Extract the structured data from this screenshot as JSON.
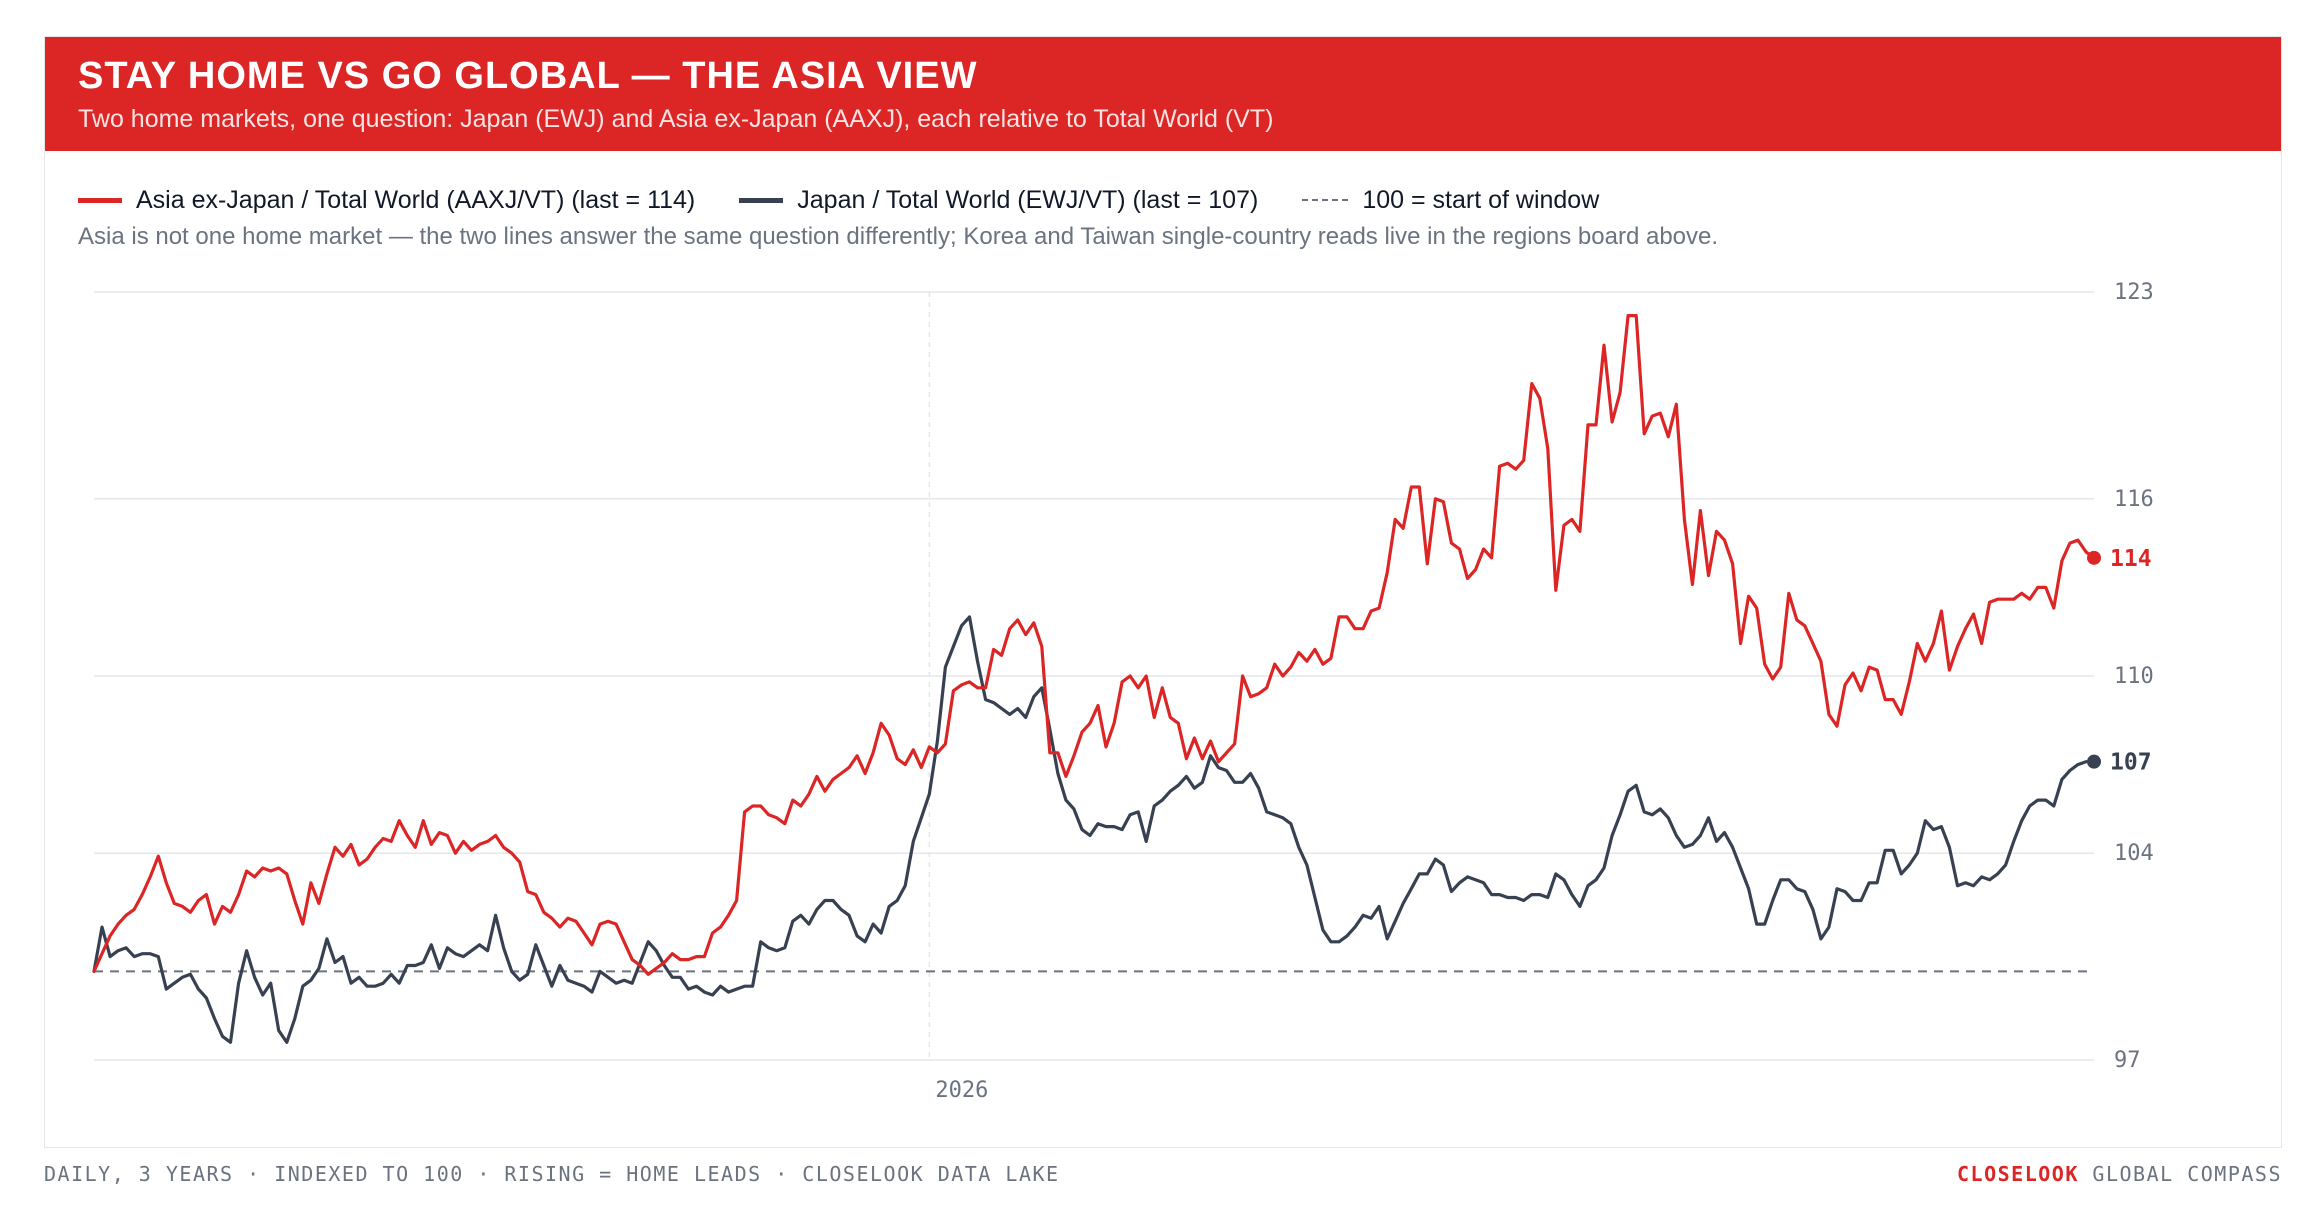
{
  "header": {
    "title": "STAY HOME VS GO GLOBAL — THE ASIA VIEW",
    "subtitle": "Two home markets, one question: Japan (EWJ) and Asia ex-Japan (AAXJ), each relative to Total World (VT)"
  },
  "legend": {
    "asia_label": "Asia ex-Japan / Total World (AAXJ/VT) (last = 114)",
    "japan_label": "Japan / Total World (EWJ/VT) (last = 107)",
    "baseline_label": "100 = start of window"
  },
  "note": "Asia is not one home market — the two lines answer the same question differently; Korea and Taiwan single-country reads live in the regions board above.",
  "footer": {
    "left": "DAILY, 3 YEARS · INDEXED TO 100 · RISING = HOME LEADS · CLOSELOOK DATA LAKE",
    "brand": "CLOSELOOK",
    "right": "GLOBAL COMPASS"
  },
  "colors": {
    "asia": "#dc2626",
    "japan": "#374151",
    "baseline": "#6b7280",
    "grid": "#e5e7eb"
  },
  "chart_data": {
    "type": "line",
    "ylim": [
      97,
      123
    ],
    "y_ticks": [
      97,
      104,
      110,
      116,
      123
    ],
    "x_ticks": [
      {
        "label": "2026",
        "index": 104
      }
    ],
    "baseline": 100,
    "grid": true,
    "legend_position": "top-left",
    "series": [
      {
        "name": "Asia ex-Japan / Total World (AAXJ/VT)",
        "last_label": "114",
        "values": [
          100.0,
          100.6,
          101.2,
          101.6,
          101.9,
          102.1,
          102.6,
          103.2,
          103.9,
          103.0,
          102.3,
          102.2,
          102.0,
          102.4,
          102.6,
          101.6,
          102.2,
          102.0,
          102.6,
          103.4,
          103.2,
          103.5,
          103.4,
          103.5,
          103.3,
          102.4,
          101.6,
          103.0,
          102.3,
          103.3,
          104.2,
          103.9,
          104.3,
          103.6,
          103.8,
          104.2,
          104.5,
          104.4,
          105.1,
          104.6,
          104.2,
          105.1,
          104.3,
          104.7,
          104.6,
          104.0,
          104.4,
          104.1,
          104.3,
          104.4,
          104.6,
          104.2,
          104.0,
          103.7,
          102.7,
          102.6,
          102.0,
          101.8,
          101.5,
          101.8,
          101.7,
          101.3,
          100.9,
          101.6,
          101.7,
          101.6,
          101.0,
          100.4,
          100.2,
          99.9,
          100.1,
          100.3,
          100.6,
          100.4,
          100.4,
          100.5,
          100.5,
          101.3,
          101.5,
          101.9,
          102.4,
          105.4,
          105.6,
          105.6,
          105.3,
          105.2,
          105.0,
          105.8,
          105.6,
          106.0,
          106.6,
          106.1,
          106.5,
          106.7,
          106.9,
          107.3,
          106.7,
          107.4,
          108.4,
          108.0,
          107.2,
          107.0,
          107.5,
          106.9,
          107.6,
          107.4,
          107.7,
          109.5,
          109.7,
          109.8,
          109.6,
          109.6,
          110.9,
          110.7,
          111.6,
          111.9,
          111.4,
          111.8,
          111.0,
          107.4,
          107.4,
          106.6,
          107.3,
          108.1,
          108.4,
          109.0,
          107.6,
          108.4,
          109.8,
          110.0,
          109.6,
          110.0,
          108.6,
          109.6,
          108.6,
          108.4,
          107.2,
          107.9,
          107.2,
          107.8,
          107.1,
          107.4,
          107.7,
          110.0,
          109.3,
          109.4,
          109.6,
          110.4,
          110.0,
          110.3,
          110.8,
          110.5,
          110.9,
          110.4,
          110.6,
          112.0,
          112.0,
          111.6,
          111.6,
          112.2,
          112.3,
          113.5,
          115.3,
          115.0,
          116.4,
          116.4,
          113.8,
          116.0,
          115.9,
          114.5,
          114.3,
          113.3,
          113.6,
          114.3,
          114.0,
          117.1,
          117.2,
          117.0,
          117.3,
          119.9,
          119.4,
          117.7,
          112.9,
          115.1,
          115.3,
          114.9,
          118.5,
          118.5,
          121.2,
          118.6,
          119.6,
          122.2,
          122.2,
          118.2,
          118.8,
          118.9,
          118.1,
          119.2,
          115.3,
          113.1,
          115.6,
          113.4,
          114.9,
          114.6,
          113.8,
          111.1,
          112.7,
          112.3,
          110.4,
          109.9,
          110.3,
          112.8,
          111.9,
          111.7,
          111.1,
          110.5,
          108.7,
          108.3,
          109.7,
          110.1,
          109.5,
          110.3,
          110.2,
          109.2,
          109.2,
          108.7,
          109.8,
          111.1,
          110.5,
          111.1,
          112.2,
          110.2,
          111.0,
          111.6,
          112.1,
          111.1,
          112.5,
          112.6,
          112.6,
          112.6,
          112.8,
          112.6,
          113.0,
          113.0,
          112.3,
          113.9,
          114.5,
          114.6,
          114.2,
          114.0
        ]
      },
      {
        "name": "Japan / Total World (EWJ/VT)",
        "last_label": "107",
        "values": [
          100.0,
          101.5,
          100.5,
          100.7,
          100.8,
          100.5,
          100.6,
          100.6,
          100.5,
          99.4,
          99.6,
          99.8,
          99.9,
          99.4,
          99.1,
          98.4,
          97.8,
          97.6,
          99.6,
          100.7,
          99.8,
          99.2,
          99.6,
          98.0,
          97.6,
          98.4,
          99.5,
          99.7,
          100.1,
          101.1,
          100.3,
          100.5,
          99.6,
          99.8,
          99.5,
          99.5,
          99.6,
          99.9,
          99.6,
          100.2,
          100.2,
          100.3,
          100.9,
          100.1,
          100.8,
          100.6,
          100.5,
          100.7,
          100.9,
          100.7,
          101.9,
          100.8,
          100.0,
          99.7,
          99.9,
          100.9,
          100.2,
          99.5,
          100.2,
          99.7,
          99.6,
          99.5,
          99.3,
          100.0,
          99.8,
          99.6,
          99.7,
          99.6,
          100.3,
          101.0,
          100.7,
          100.2,
          99.8,
          99.8,
          99.4,
          99.5,
          99.3,
          99.2,
          99.5,
          99.3,
          99.4,
          99.5,
          99.5,
          101.0,
          100.8,
          100.7,
          100.8,
          101.7,
          101.9,
          101.6,
          102.1,
          102.4,
          102.4,
          102.1,
          101.9,
          101.2,
          101.0,
          101.6,
          101.3,
          102.2,
          102.4,
          102.9,
          104.4,
          105.2,
          106.0,
          107.8,
          110.3,
          111.0,
          111.7,
          112.0,
          110.5,
          109.2,
          109.1,
          108.9,
          108.7,
          108.9,
          108.6,
          109.3,
          109.6,
          108.2,
          106.7,
          105.8,
          105.5,
          104.8,
          104.6,
          105.0,
          104.9,
          104.9,
          104.8,
          105.3,
          105.4,
          104.4,
          105.6,
          105.8,
          106.1,
          106.3,
          106.6,
          106.2,
          106.4,
          107.3,
          106.9,
          106.8,
          106.4,
          106.4,
          106.7,
          106.2,
          105.4,
          105.3,
          105.2,
          105.0,
          104.2,
          103.6,
          102.5,
          101.4,
          101.0,
          101.0,
          101.2,
          101.5,
          101.9,
          101.8,
          102.2,
          101.1,
          101.7,
          102.3,
          102.8,
          103.3,
          103.3,
          103.8,
          103.6,
          102.7,
          103.0,
          103.2,
          103.1,
          103.0,
          102.6,
          102.6,
          102.5,
          102.5,
          102.4,
          102.6,
          102.6,
          102.5,
          103.3,
          103.1,
          102.6,
          102.2,
          102.9,
          103.1,
          103.5,
          104.6,
          105.3,
          106.1,
          106.3,
          105.4,
          105.3,
          105.5,
          105.2,
          104.6,
          104.2,
          104.3,
          104.6,
          105.2,
          104.4,
          104.7,
          104.2,
          103.5,
          102.8,
          101.6,
          101.6,
          102.4,
          103.1,
          103.1,
          102.8,
          102.7,
          102.1,
          101.1,
          101.5,
          102.8,
          102.7,
          102.4,
          102.4,
          103.0,
          103.0,
          104.1,
          104.1,
          103.3,
          103.6,
          104.0,
          105.1,
          104.8,
          104.9,
          104.2,
          102.9,
          103.0,
          102.9,
          103.2,
          103.1,
          103.3,
          103.6,
          104.4,
          105.1,
          105.6,
          105.8,
          105.8,
          105.6,
          106.5,
          106.8,
          107.0,
          107.1
        ]
      }
    ]
  }
}
